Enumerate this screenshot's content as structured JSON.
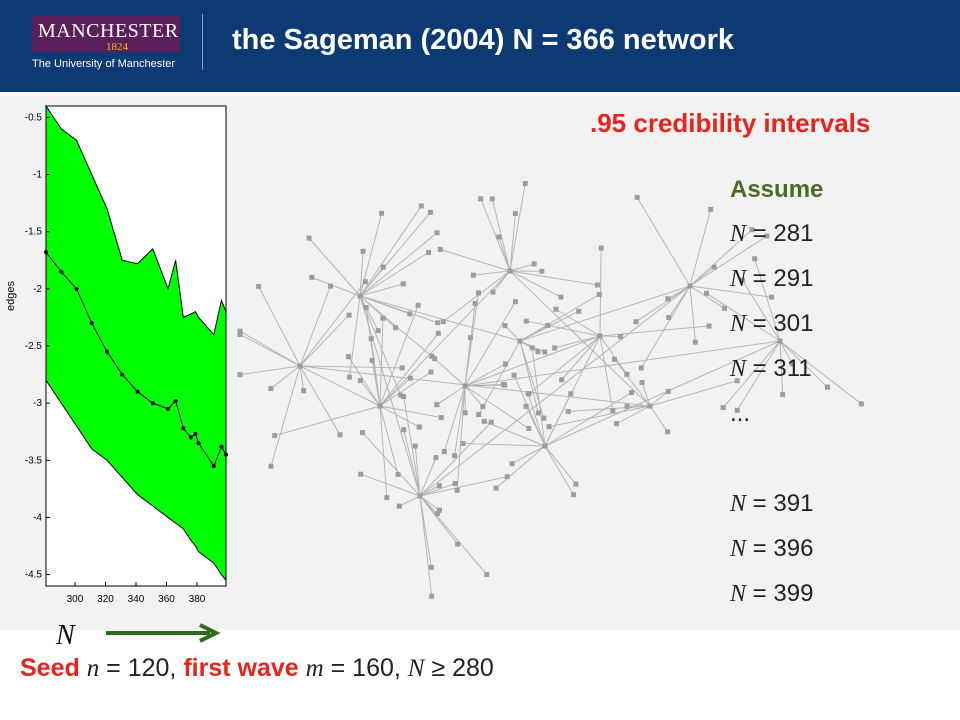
{
  "header": {
    "logo_name": "MANCHESTER",
    "logo_year": "1824",
    "logo_university": "The University of Manchester",
    "title": "the Sageman (2004) N = 366 network"
  },
  "credibility_label": ".95 credibility intervals",
  "assume": {
    "title": "Assume",
    "n_symbol": "N",
    "lines_top": [
      " = 281",
      " = 291",
      " = 301",
      " = 311"
    ],
    "ellipsis": "...",
    "lines_bottom": [
      " = 391",
      " = 396",
      " = 399"
    ]
  },
  "bottom": {
    "axis_symbol": "N",
    "seed_label": "Seed",
    "seed_var": "n",
    "seed_value": " = 120, ",
    "wave_label": "first wave",
    "wave_var": "m",
    "wave_value": " = 160, ",
    "n_var": "N",
    "n_value": " ≥ 280"
  },
  "colors": {
    "header_bg": "#0d3a73",
    "band_fill": "#00ff00",
    "accent_red": "#e8231b",
    "assume_green": "#4b6b24",
    "arrow_green": "#2e6b1f"
  },
  "chart_data": {
    "type": "area",
    "ylabel": "edges",
    "xlabel": "",
    "xlim": [
      281,
      399
    ],
    "ylim": [
      -4.6,
      -0.4
    ],
    "xticks": [
      300,
      320,
      340,
      360,
      380
    ],
    "yticks": [
      -0.5,
      -1,
      -1.5,
      -2,
      -2.5,
      -3,
      -3.5,
      -4,
      -4.5
    ],
    "x": [
      281,
      291,
      301,
      311,
      321,
      331,
      341,
      351,
      361,
      366,
      371,
      376,
      379,
      381,
      391,
      396,
      399
    ],
    "estimate": [
      -1.68,
      -1.85,
      -2.0,
      -2.3,
      -2.55,
      -2.75,
      -2.9,
      -3.0,
      -3.05,
      -2.98,
      -3.22,
      -3.3,
      -3.27,
      -3.35,
      -3.55,
      -3.38,
      -3.45
    ],
    "upper": [
      -0.4,
      -0.6,
      -0.7,
      -1.0,
      -1.3,
      -1.75,
      -1.78,
      -1.65,
      -2.0,
      -1.75,
      -2.25,
      -2.22,
      -2.2,
      -2.25,
      -2.4,
      -2.1,
      -2.2
    ],
    "lower": [
      -2.8,
      -3.0,
      -3.2,
      -3.4,
      -3.5,
      -3.65,
      -3.8,
      -3.9,
      -4.0,
      -4.05,
      -4.1,
      -4.2,
      -4.25,
      -4.3,
      -4.4,
      -4.5,
      -4.55
    ],
    "grid": false
  }
}
